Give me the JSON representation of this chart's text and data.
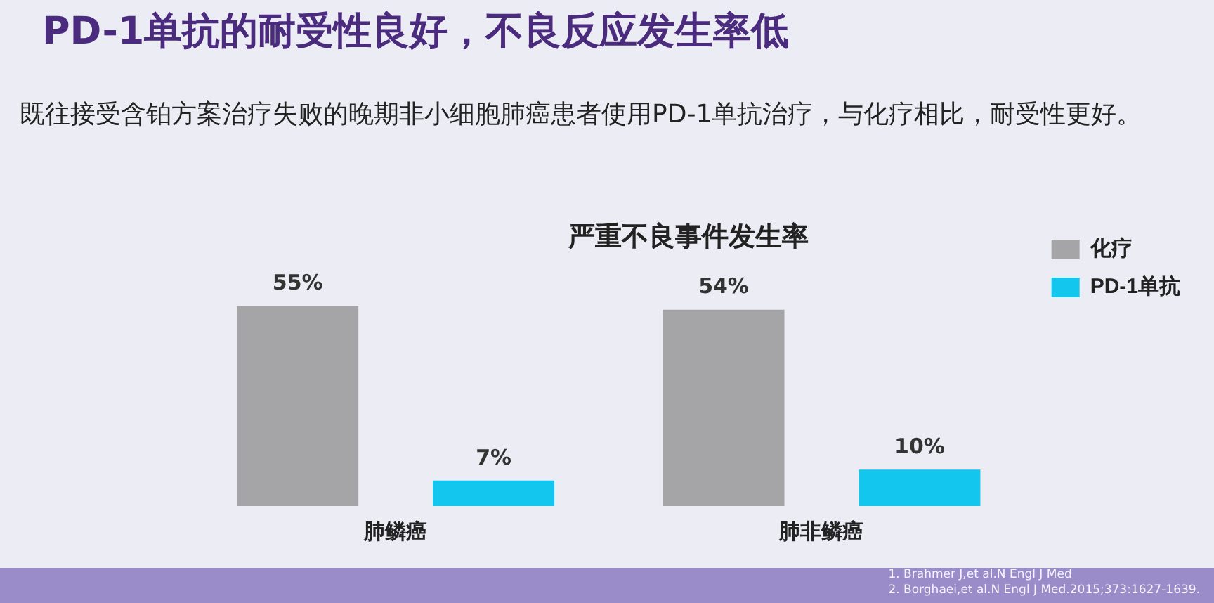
{
  "chart_data": {
    "type": "bar",
    "title": "严重不良事件发生率",
    "annotations": [
      "PD-1单抗的耐受性良好，不良反应发生率低",
      "既往接受含铂方案治疗失败的晚期非小细胞肺癌患者使用PD-1单抗治疗，与化疗相比，耐受性更好。",
      "1. Brahmer J,et al.N Engl J Med",
      "2. Borghaei,et al.N Engl J Med.2015;373:1627-1639."
    ],
    "categories": [
      "肺鳞癌",
      "肺非鳞癌"
    ],
    "series": [
      {
        "name": "化疗",
        "color": "#a5a5a7",
        "values": [
          55,
          54
        ],
        "value_labels": [
          "55%",
          "54%"
        ]
      },
      {
        "name": "PD-1单抗",
        "color": "#12c6ee",
        "values": [
          7,
          10
        ],
        "value_labels": [
          "7%",
          "10%"
        ]
      }
    ],
    "grid": false,
    "legend": "right"
  }
}
